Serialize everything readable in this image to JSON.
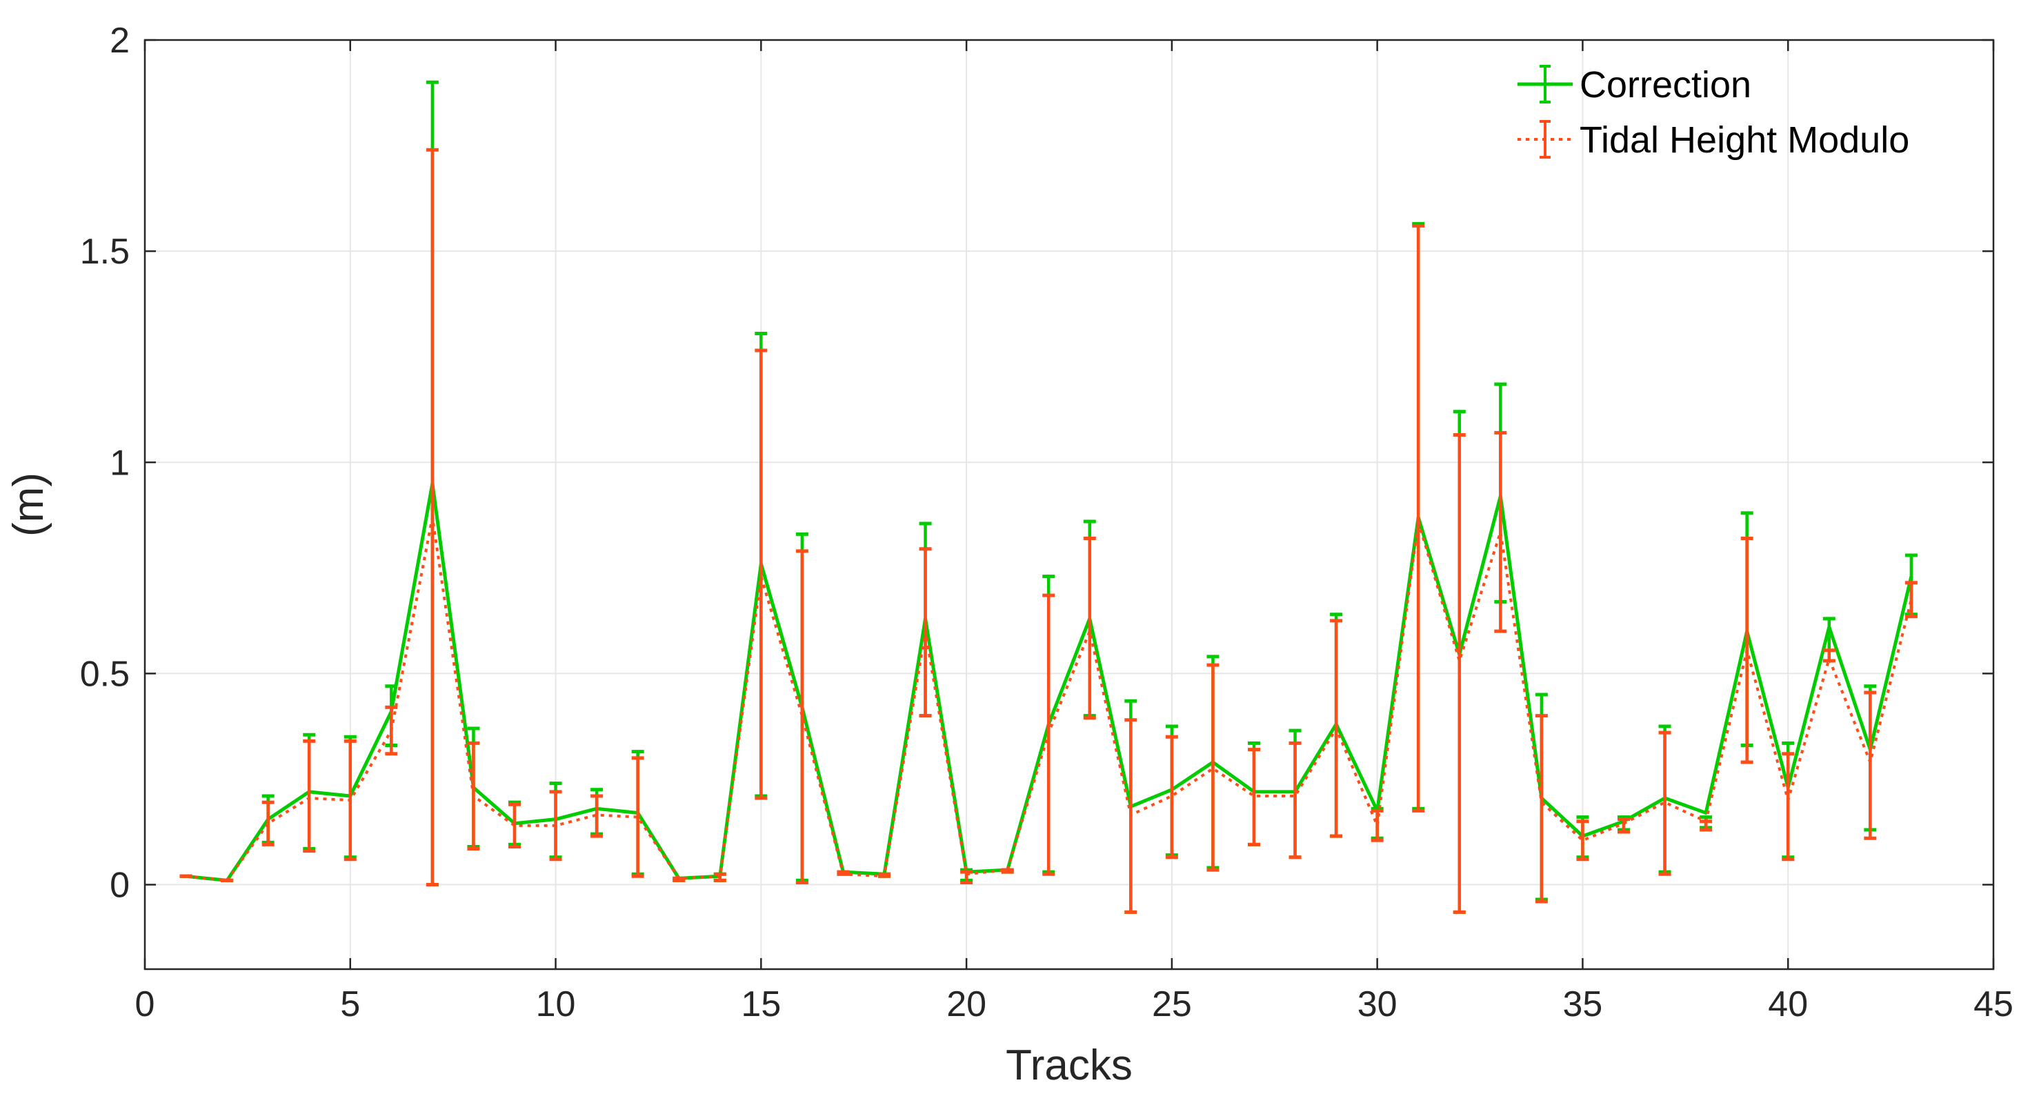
{
  "chart_data": {
    "type": "line",
    "xlabel": "Tracks",
    "ylabel": "(m)",
    "xlim": [
      0,
      45
    ],
    "ylim": [
      -0.2,
      2
    ],
    "xticks": [
      0,
      5,
      10,
      15,
      20,
      25,
      30,
      35,
      40,
      45
    ],
    "yticks": [
      0,
      0.5,
      1,
      1.5,
      2
    ],
    "ytick_labels": [
      "0",
      "0.5",
      "1",
      "1.5",
      "2"
    ],
    "grid": true,
    "legend_position": "top-right",
    "series": [
      {
        "name": "Correction",
        "color": "#00cc00",
        "style": "solid",
        "x": [
          1,
          2,
          3,
          4,
          5,
          6,
          7,
          8,
          9,
          10,
          11,
          12,
          13,
          14,
          15,
          16,
          17,
          18,
          19,
          20,
          21,
          22,
          23,
          24,
          25,
          26,
          27,
          28,
          29,
          30,
          31,
          32,
          33,
          34,
          35,
          36,
          37,
          38,
          39,
          40,
          41,
          42,
          43
        ],
        "y": [
          0.02,
          0.01,
          0.155,
          0.22,
          0.21,
          0.41,
          0.95,
          0.23,
          0.145,
          0.155,
          0.18,
          0.17,
          0.015,
          0.02,
          0.76,
          0.42,
          0.03,
          0.025,
          0.63,
          0.03,
          0.035,
          0.38,
          0.63,
          0.185,
          0.225,
          0.29,
          0.22,
          0.22,
          0.38,
          0.175,
          0.87,
          0.545,
          0.92,
          0.205,
          0.115,
          0.15,
          0.205,
          0.17,
          0.6,
          0.23,
          0.61,
          0.32,
          0.73
        ],
        "err_low": [
          0.02,
          0.01,
          0.1,
          0.085,
          0.065,
          0.33,
          0.0,
          0.09,
          0.095,
          0.065,
          0.12,
          0.025,
          0.01,
          0.01,
          0.21,
          0.01,
          0.025,
          0.02,
          0.4,
          0.01,
          0.03,
          0.03,
          0.4,
          -0.065,
          0.07,
          0.04,
          0.095,
          0.065,
          0.115,
          0.11,
          0.18,
          -0.065,
          0.67,
          -0.035,
          0.065,
          0.13,
          0.03,
          0.135,
          0.33,
          0.065,
          0.53,
          0.13,
          0.64
        ],
        "err_high": [
          0.02,
          0.01,
          0.21,
          0.355,
          0.35,
          0.47,
          1.9,
          0.37,
          0.195,
          0.24,
          0.225,
          0.315,
          0.015,
          0.025,
          1.305,
          0.83,
          0.03,
          0.025,
          0.855,
          0.035,
          0.035,
          0.73,
          0.86,
          0.435,
          0.375,
          0.54,
          0.335,
          0.365,
          0.64,
          0.18,
          1.565,
          1.12,
          1.185,
          0.45,
          0.16,
          0.16,
          0.375,
          0.16,
          0.88,
          0.335,
          0.63,
          0.47,
          0.78
        ]
      },
      {
        "name": "Tidal Height Modulo",
        "color": "#ff4d1a",
        "style": "dotted",
        "x": [
          1,
          2,
          3,
          4,
          5,
          6,
          7,
          8,
          9,
          10,
          11,
          12,
          13,
          14,
          15,
          16,
          17,
          18,
          19,
          20,
          21,
          22,
          23,
          24,
          25,
          26,
          27,
          28,
          29,
          30,
          31,
          32,
          33,
          34,
          35,
          36,
          37,
          38,
          39,
          40,
          41,
          42,
          43
        ],
        "y": [
          0.02,
          0.01,
          0.145,
          0.205,
          0.2,
          0.365,
          0.87,
          0.21,
          0.14,
          0.14,
          0.165,
          0.16,
          0.015,
          0.02,
          0.73,
          0.4,
          0.025,
          0.02,
          0.6,
          0.025,
          0.035,
          0.36,
          0.6,
          0.165,
          0.21,
          0.275,
          0.21,
          0.21,
          0.37,
          0.14,
          0.86,
          0.53,
          0.835,
          0.195,
          0.105,
          0.145,
          0.195,
          0.15,
          0.555,
          0.2,
          0.535,
          0.29,
          0.675
        ],
        "err_low": [
          0.02,
          0.01,
          0.095,
          0.08,
          0.06,
          0.31,
          0.0,
          0.085,
          0.09,
          0.06,
          0.115,
          0.02,
          0.01,
          0.01,
          0.205,
          0.005,
          0.025,
          0.02,
          0.4,
          0.005,
          0.03,
          0.025,
          0.395,
          -0.065,
          0.065,
          0.035,
          0.095,
          0.065,
          0.115,
          0.105,
          0.175,
          -0.065,
          0.6,
          -0.04,
          0.06,
          0.125,
          0.025,
          0.13,
          0.29,
          0.06,
          0.53,
          0.11,
          0.635
        ],
        "err_high": [
          0.02,
          0.01,
          0.195,
          0.34,
          0.34,
          0.42,
          1.74,
          0.335,
          0.19,
          0.22,
          0.21,
          0.3,
          0.015,
          0.025,
          1.265,
          0.79,
          0.03,
          0.025,
          0.795,
          0.03,
          0.035,
          0.685,
          0.82,
          0.39,
          0.35,
          0.52,
          0.32,
          0.335,
          0.625,
          0.175,
          1.56,
          1.065,
          1.07,
          0.4,
          0.15,
          0.155,
          0.36,
          0.15,
          0.82,
          0.31,
          0.555,
          0.455,
          0.715
        ]
      }
    ]
  }
}
